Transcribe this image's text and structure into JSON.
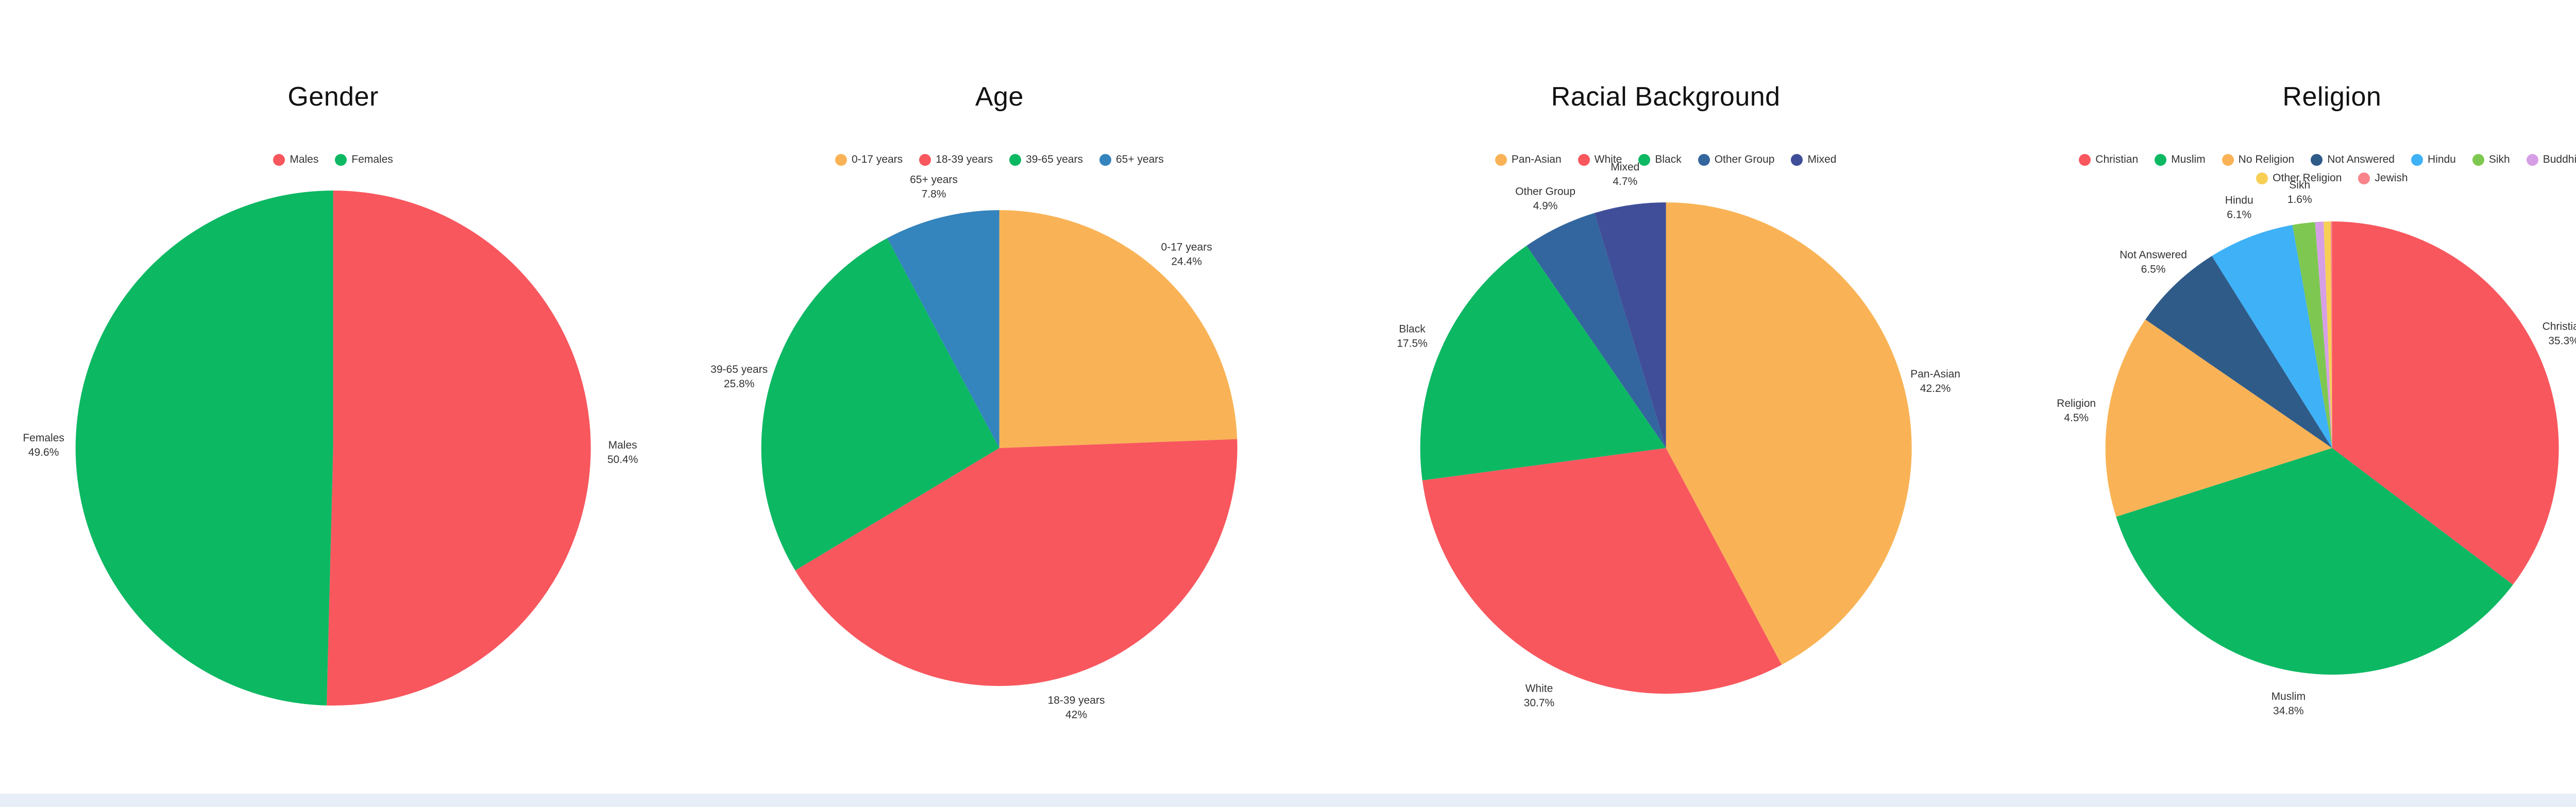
{
  "page": {
    "background_color": "#ffffff",
    "footer_bar_color": "#e7eef7"
  },
  "chart_data": [
    {
      "type": "pie",
      "title": "Gender",
      "legend_position": "top-center",
      "radius": 500,
      "slices": [
        {
          "name": "Males",
          "value": 50.4,
          "color": "#f8575e",
          "label_visible": true,
          "label_lines": [
            "Males",
            "50.4%"
          ]
        },
        {
          "name": "Females",
          "value": 49.6,
          "color": "#0db863",
          "label_visible": true,
          "label_lines": [
            "Females",
            "49.6%"
          ]
        }
      ]
    },
    {
      "type": "pie",
      "title": "Age",
      "legend_position": "top-center",
      "radius": 462,
      "slices": [
        {
          "name": "0-17 years",
          "value": 24.4,
          "color": "#f9b356",
          "label_visible": true,
          "label_lines": [
            "0-17 years",
            "24.4%"
          ]
        },
        {
          "name": "18-39 years",
          "value": 42.0,
          "color": "#f8575e",
          "label_visible": true,
          "label_lines": [
            "18-39 years",
            "42%"
          ]
        },
        {
          "name": "39-65 years",
          "value": 25.8,
          "color": "#0db863",
          "label_visible": true,
          "label_lines": [
            "39-65 years",
            "25.8%"
          ]
        },
        {
          "name": "65+ years",
          "value": 7.8,
          "color": "#3484bd",
          "label_visible": true,
          "label_lines": [
            "65+ years",
            "7.8%"
          ]
        }
      ]
    },
    {
      "type": "pie",
      "title": "Racial Background",
      "legend_position": "top-center",
      "radius": 477,
      "slices": [
        {
          "name": "Pan-Asian",
          "value": 42.2,
          "color": "#f9b356",
          "label_visible": true,
          "label_lines": [
            "Pan-Asian",
            "42.2%"
          ]
        },
        {
          "name": "White",
          "value": 30.7,
          "color": "#f8575e",
          "label_visible": true,
          "label_lines": [
            "White",
            "30.7%"
          ]
        },
        {
          "name": "Black",
          "value": 17.5,
          "color": "#0db863",
          "label_visible": true,
          "label_lines": [
            "Black",
            "17.5%"
          ]
        },
        {
          "name": "Other Group",
          "value": 4.9,
          "color": "#33669e",
          "label_visible": true,
          "label_lines": [
            "Other Group",
            "4.9%"
          ]
        },
        {
          "name": "Mixed",
          "value": 4.7,
          "color": "#404e99",
          "label_visible": true,
          "label_lines": [
            "Mixed",
            "4.7%"
          ]
        }
      ]
    },
    {
      "type": "pie",
      "title": "Religion",
      "legend_position": "top-center",
      "radius": 440,
      "slices": [
        {
          "name": "Christian",
          "value": 35.3,
          "color": "#f8575e",
          "label_visible": true,
          "label_lines": [
            "Christian",
            "35.3%"
          ]
        },
        {
          "name": "Muslim",
          "value": 34.8,
          "color": "#0db863",
          "label_visible": true,
          "label_lines": [
            "Muslim",
            "34.8%"
          ]
        },
        {
          "name": "No Religion",
          "value": 14.5,
          "color": "#f9b356",
          "label_visible": true,
          "label_clipped": true,
          "label_lines": [
            "Religion",
            "4.5%"
          ]
        },
        {
          "name": "Not Answered",
          "value": 6.5,
          "color": "#2f5b89",
          "label_visible": true,
          "label_lines": [
            "Not Answered",
            "6.5%"
          ]
        },
        {
          "name": "Hindu",
          "value": 6.1,
          "color": "#3eb1f7",
          "label_visible": true,
          "label_lines": [
            "Hindu",
            "6.1%"
          ]
        },
        {
          "name": "Sikh",
          "value": 1.6,
          "color": "#7ec851",
          "label_visible": true,
          "label_lines": [
            "Sikh",
            "1.6%"
          ]
        },
        {
          "name": "Buddhist",
          "value": 0.6,
          "color": "#d69fe5",
          "label_visible": false
        },
        {
          "name": "Other Religion",
          "value": 0.5,
          "color": "#f7cf55",
          "label_visible": false
        },
        {
          "name": "Jewish",
          "value": 0.1,
          "color": "#f8838a",
          "label_visible": false
        }
      ]
    }
  ]
}
